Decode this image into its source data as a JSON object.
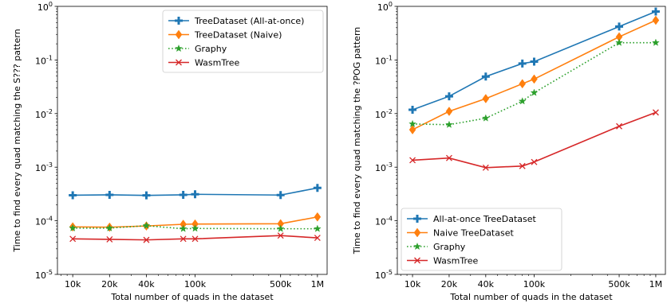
{
  "chart_data": [
    {
      "type": "line",
      "xscale": "log",
      "yscale": "log",
      "xlabel": "Total number of quads in the dataset",
      "ylabel": "Time to find every quad matching the S??? pattern",
      "xlim": [
        7500,
        1200000
      ],
      "ylim": [
        1e-05,
        1
      ],
      "xticks": [
        10000,
        20000,
        40000,
        100000,
        500000,
        1000000
      ],
      "xtick_labels": [
        "10k",
        "20k",
        "40k",
        "100k",
        "500k",
        "1M"
      ],
      "yticks": [
        1e-05,
        0.0001,
        0.001,
        0.01,
        0.1,
        1
      ],
      "ytick_exponents": [
        "-5",
        "-4",
        "-3",
        "-2",
        "-1",
        "0"
      ],
      "ytick_base": "10",
      "legend_position": "top-right",
      "x": [
        10000,
        20000,
        40000,
        80000,
        100000,
        500000,
        1000000
      ],
      "series": [
        {
          "name": "TreeDataset (All-at-once)",
          "color": "#1f77b4",
          "marker": "plus",
          "dash": "solid",
          "values": [
            0.0003,
            0.000305,
            0.000298,
            0.000305,
            0.000312,
            0.000302,
            0.00041
          ]
        },
        {
          "name": "TreeDataset (Naive)",
          "color": "#ff7f0e",
          "marker": "diamond",
          "dash": "solid",
          "values": [
            7.7e-05,
            7.6e-05,
            8e-05,
            8.6e-05,
            8.7e-05,
            8.8e-05,
            0.000118
          ]
        },
        {
          "name": "Graphy",
          "color": "#2ca02c",
          "marker": "star",
          "dash": "dotted",
          "values": [
            7.3e-05,
            7.3e-05,
            8.1e-05,
            7.1e-05,
            7.2e-05,
            7.1e-05,
            7.1e-05
          ]
        },
        {
          "name": "WasmTree",
          "color": "#d62728",
          "marker": "x",
          "dash": "solid",
          "values": [
            4.6e-05,
            4.5e-05,
            4.4e-05,
            4.6e-05,
            4.6e-05,
            5.3e-05,
            4.8e-05
          ]
        }
      ]
    },
    {
      "type": "line",
      "xscale": "log",
      "yscale": "log",
      "xlabel": "Total number of quads in the dataset",
      "ylabel": "Time to find every quad matching the ?POG pattern",
      "xlim": [
        7500,
        1200000
      ],
      "ylim": [
        1e-05,
        1
      ],
      "xticks": [
        10000,
        20000,
        40000,
        100000,
        500000,
        1000000
      ],
      "xtick_labels": [
        "10k",
        "20k",
        "40k",
        "100k",
        "500k",
        "1M"
      ],
      "yticks": [
        1e-05,
        0.0001,
        0.001,
        0.01,
        0.1,
        1
      ],
      "ytick_exponents": [
        "-5",
        "-4",
        "-3",
        "-2",
        "-1",
        "0"
      ],
      "ytick_base": "10",
      "legend_position": "bottom-left",
      "x": [
        10000,
        20000,
        40000,
        80000,
        100000,
        500000,
        1000000
      ],
      "series": [
        {
          "name": "All-at-once TreeDataset",
          "color": "#1f77b4",
          "marker": "plus",
          "dash": "solid",
          "values": [
            0.0118,
            0.021,
            0.049,
            0.086,
            0.093,
            0.42,
            0.8
          ]
        },
        {
          "name": "Naive TreeDataset",
          "color": "#ff7f0e",
          "marker": "diamond",
          "dash": "solid",
          "values": [
            0.005,
            0.011,
            0.019,
            0.036,
            0.044,
            0.27,
            0.55
          ]
        },
        {
          "name": "Graphy",
          "color": "#2ca02c",
          "marker": "star",
          "dash": "dotted",
          "values": [
            0.0064,
            0.0062,
            0.0082,
            0.017,
            0.0245,
            0.21,
            0.21
          ]
        },
        {
          "name": "WasmTree",
          "color": "#d62728",
          "marker": "x",
          "dash": "solid",
          "values": [
            0.00135,
            0.00148,
            0.00098,
            0.00105,
            0.00125,
            0.0058,
            0.0105
          ]
        }
      ]
    }
  ]
}
